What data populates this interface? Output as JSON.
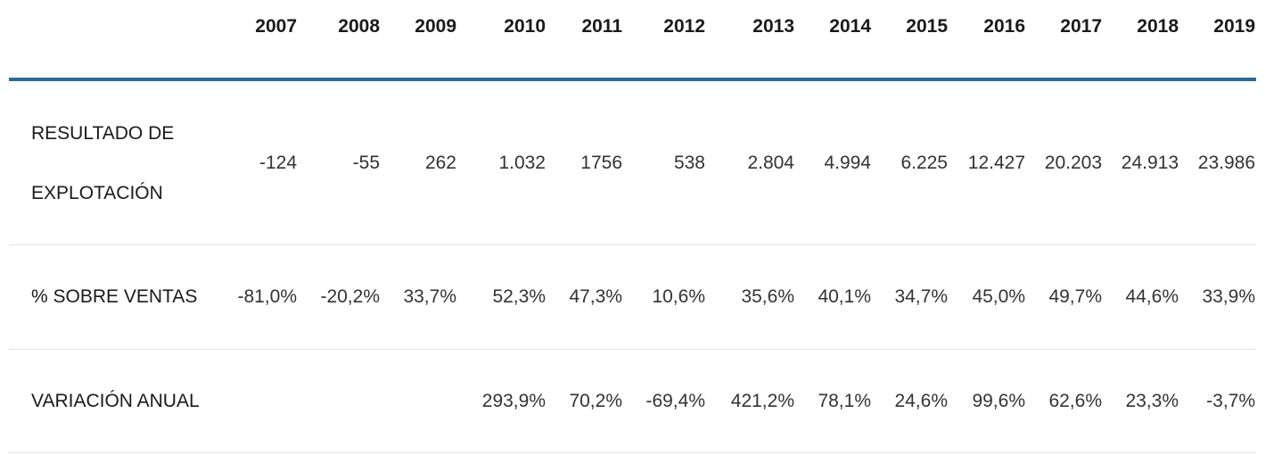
{
  "table": {
    "columns": [
      "2007",
      "2008",
      "2009",
      "2010",
      "2011",
      "2012",
      "2013",
      "2014",
      "2015",
      "2016",
      "2017",
      "2018",
      "2019"
    ],
    "rows": [
      {
        "label": "RESULTADO DE EXPLOTACIÓN",
        "cells": [
          "-124",
          "-55",
          "262",
          "1.032",
          "1756",
          "538",
          "2.804",
          "4.994",
          "6.225",
          "12.427",
          "20.203",
          "24.913",
          "23.986"
        ]
      },
      {
        "label": "% SOBRE VENTAS",
        "cells": [
          "-81,0%",
          "-20,2%",
          "33,7%",
          "52,3%",
          "47,3%",
          "10,6%",
          "35,6%",
          "40,1%",
          "34,7%",
          "45,0%",
          "49,7%",
          "44,6%",
          "33,9%"
        ]
      },
      {
        "label": "VARIACIÓN ANUAL",
        "cells": [
          null,
          null,
          null,
          "293,9%",
          "70,2%",
          "-69,4%",
          "421,2%",
          "78,1%",
          "24,6%",
          "99,6%",
          "62,6%",
          "23,3%",
          "-3,7%"
        ]
      }
    ]
  }
}
